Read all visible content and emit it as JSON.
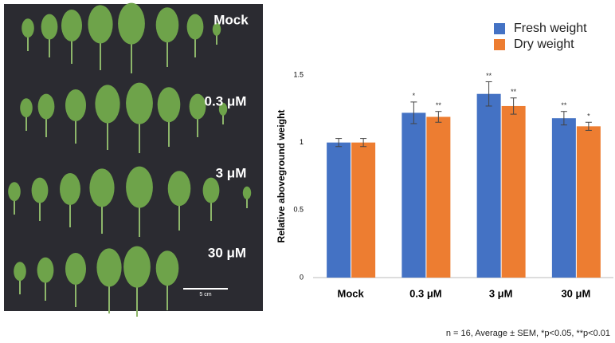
{
  "photo": {
    "labels": [
      "Mock",
      "0.3 μM",
      "3 μM",
      "30 μM"
    ],
    "scale_bar": "5 cm"
  },
  "chart_data": {
    "type": "bar",
    "ylabel": "Relative aboveground weight",
    "categories": [
      "Mock",
      "0.3 μM",
      "3 μM",
      "30 μM"
    ],
    "series": [
      {
        "name": "Fresh weight",
        "color": "#4472c4",
        "values": [
          1.0,
          1.22,
          1.36,
          1.18
        ],
        "errors": [
          0.03,
          0.08,
          0.09,
          0.05
        ],
        "significance": [
          null,
          "*",
          "**",
          "**"
        ]
      },
      {
        "name": "Dry weight",
        "color": "#ed7d31",
        "values": [
          1.0,
          1.19,
          1.27,
          1.12
        ],
        "errors": [
          0.03,
          0.04,
          0.06,
          0.03
        ],
        "significance": [
          null,
          "**",
          "**",
          "*"
        ]
      }
    ],
    "ylim": [
      0,
      1.5
    ],
    "yticks": [
      0,
      0.5,
      1,
      1.5
    ],
    "grid": false,
    "note": "n = 16, Average ± SEM, *p<0.05, **p<0.01"
  }
}
